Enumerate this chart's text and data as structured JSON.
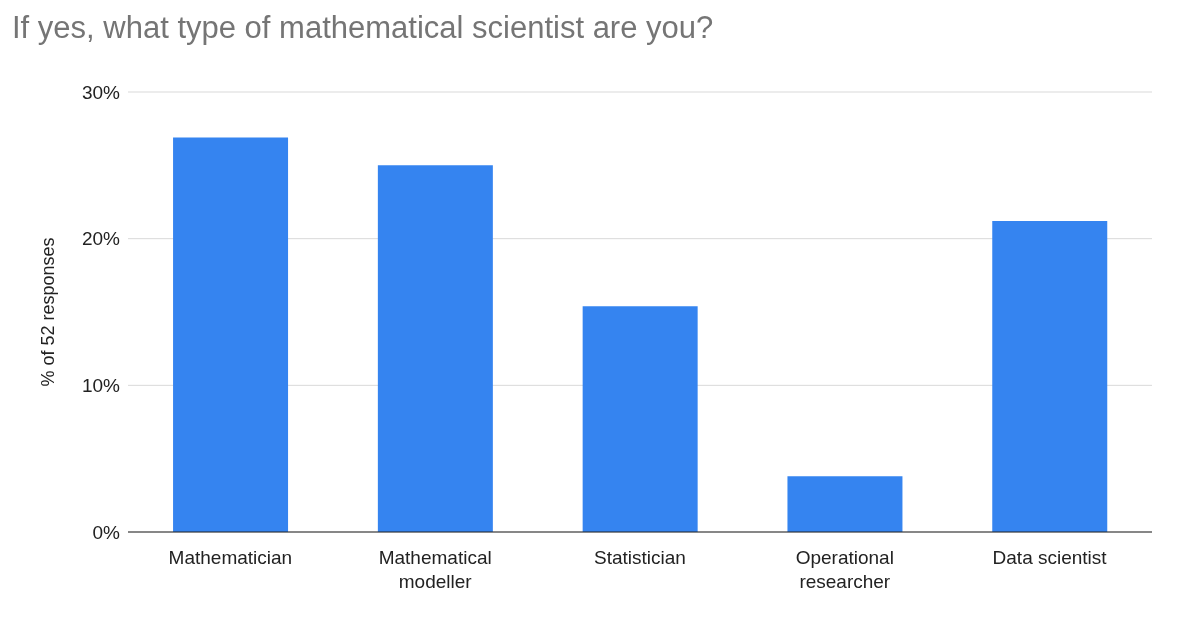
{
  "chart_data": {
    "type": "bar",
    "title": "If yes, what type of mathematical scientist are you?",
    "ylabel": "% of 52 responses",
    "categories": [
      "Mathematician",
      "Mathematical modeller",
      "Statistician",
      "Operational researcher",
      "Data scientist"
    ],
    "values": [
      26.9,
      25,
      15.4,
      3.8,
      21.2
    ],
    "color": "#3584f0",
    "ylim": [
      0,
      30
    ],
    "yticks": [
      {
        "value": 0,
        "label": "0%"
      },
      {
        "value": 10,
        "label": "10%"
      },
      {
        "value": 20,
        "label": "20%"
      },
      {
        "value": 30,
        "label": "30%"
      }
    ],
    "grid": "y",
    "legend": false
  }
}
